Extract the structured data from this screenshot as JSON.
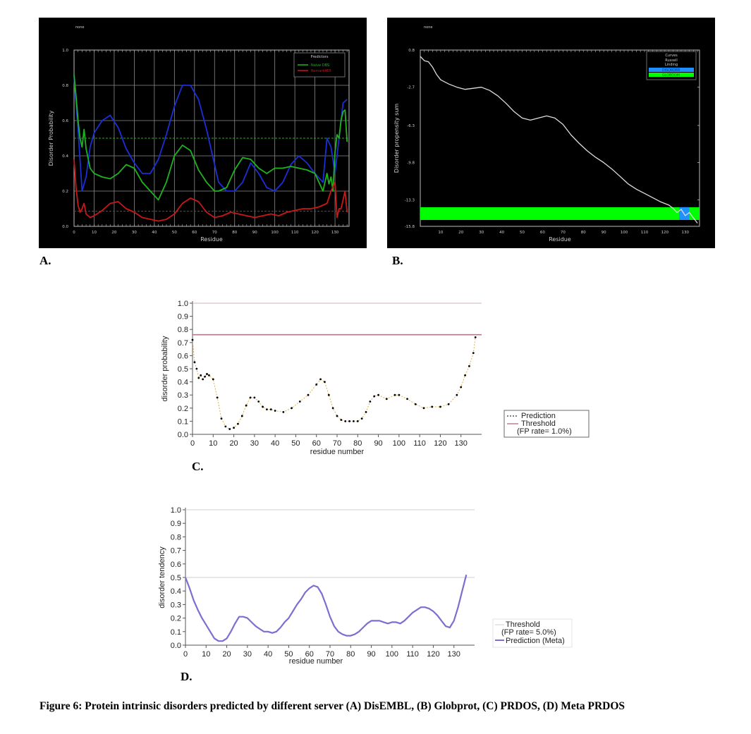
{
  "caption": "Figure 6: Protein intrinsic disorders predicted by different server (A) DisEMBL, (B) Globprot, (C) PRDOS, (D) Meta PRDOS",
  "panel_labels": {
    "a": "A.",
    "b": "B.",
    "c": "C.",
    "d": "D."
  },
  "colors": {
    "A_blue": "#1a2fd6",
    "A_green": "#1fb31f",
    "A_red": "#c81818",
    "B_line": "#dddddd",
    "B_green": "#00ff00",
    "B_blue": "#1e90ff",
    "C_threshold": "#b07a86",
    "C_pred": "#000000",
    "D_line": "#7b6fd0",
    "D_threshold": "#cfcfcf"
  },
  "chart_data": [
    {
      "id": "A",
      "type": "line",
      "top_label": "none",
      "title": "",
      "xlabel": "Residue",
      "ylabel": "Disorder Probability",
      "xlim": [
        0,
        137
      ],
      "ylim": [
        0,
        1
      ],
      "xticks": [
        0,
        10,
        20,
        30,
        40,
        50,
        60,
        70,
        80,
        90,
        100,
        110,
        120,
        130
      ],
      "yticks": [
        0.0,
        0.2,
        0.4,
        0.6,
        0.8,
        1.0
      ],
      "ytick_labels": [
        "0.0",
        "0.2",
        "0.4",
        "0.6",
        "0.8",
        "1.0"
      ],
      "grid": true,
      "legend": {
        "title": "Predictors",
        "position": "top-right"
      },
      "thresholds": [
        {
          "y": 0.5,
          "color": "#1fb31f"
        },
        {
          "y": 0.086,
          "color": "#c81818"
        }
      ],
      "series": [
        {
          "name": "",
          "color": "#1a2fd6",
          "x": [
            0,
            2,
            4,
            6,
            8,
            10,
            14,
            18,
            22,
            26,
            30,
            34,
            38,
            42,
            46,
            50,
            54,
            58,
            62,
            66,
            70,
            72,
            76,
            80,
            84,
            88,
            92,
            96,
            100,
            104,
            108,
            112,
            116,
            120,
            124,
            126,
            128,
            130,
            132,
            134,
            136
          ],
          "y": [
            0.85,
            0.55,
            0.2,
            0.28,
            0.45,
            0.53,
            0.6,
            0.63,
            0.56,
            0.44,
            0.36,
            0.3,
            0.3,
            0.38,
            0.52,
            0.68,
            0.8,
            0.8,
            0.72,
            0.55,
            0.35,
            0.25,
            0.2,
            0.2,
            0.25,
            0.36,
            0.3,
            0.22,
            0.2,
            0.25,
            0.35,
            0.4,
            0.36,
            0.3,
            0.25,
            0.5,
            0.45,
            0.3,
            0.5,
            0.7,
            0.72
          ]
        },
        {
          "name": "Naive DBS",
          "color": "#1fb31f",
          "x": [
            0,
            1,
            2,
            3,
            4,
            5,
            6,
            8,
            10,
            14,
            18,
            22,
            26,
            30,
            34,
            38,
            42,
            46,
            50,
            54,
            58,
            62,
            66,
            70,
            72,
            76,
            80,
            84,
            88,
            92,
            96,
            100,
            104,
            108,
            112,
            116,
            120,
            124,
            126,
            127,
            128,
            129,
            130,
            131,
            132,
            133,
            134,
            135,
            136
          ],
          "y": [
            0.86,
            0.74,
            0.6,
            0.5,
            0.45,
            0.55,
            0.44,
            0.33,
            0.3,
            0.28,
            0.27,
            0.3,
            0.35,
            0.33,
            0.25,
            0.2,
            0.15,
            0.25,
            0.4,
            0.46,
            0.43,
            0.32,
            0.25,
            0.2,
            0.2,
            0.22,
            0.32,
            0.39,
            0.38,
            0.33,
            0.3,
            0.33,
            0.33,
            0.34,
            0.33,
            0.32,
            0.3,
            0.2,
            0.3,
            0.24,
            0.28,
            0.2,
            0.42,
            0.52,
            0.5,
            0.6,
            0.65,
            0.66,
            0.48
          ]
        },
        {
          "name": "Remark465",
          "color": "#c81818",
          "x": [
            0,
            1,
            2,
            3,
            4,
            5,
            6,
            8,
            10,
            14,
            18,
            22,
            26,
            30,
            34,
            38,
            42,
            46,
            50,
            54,
            58,
            62,
            66,
            70,
            74,
            78,
            82,
            86,
            90,
            94,
            98,
            102,
            106,
            110,
            114,
            118,
            122,
            126,
            128,
            130,
            131,
            132,
            133,
            134,
            135,
            136
          ],
          "y": [
            0.38,
            0.22,
            0.12,
            0.08,
            0.1,
            0.13,
            0.07,
            0.05,
            0.06,
            0.09,
            0.13,
            0.14,
            0.1,
            0.08,
            0.05,
            0.04,
            0.03,
            0.04,
            0.07,
            0.13,
            0.16,
            0.14,
            0.08,
            0.05,
            0.06,
            0.08,
            0.07,
            0.06,
            0.05,
            0.06,
            0.07,
            0.06,
            0.08,
            0.09,
            0.1,
            0.1,
            0.11,
            0.13,
            0.2,
            0.25,
            0.05,
            0.1,
            0.1,
            0.15,
            0.2,
            0.08
          ]
        }
      ]
    },
    {
      "id": "B",
      "type": "line",
      "top_label": "none",
      "title": "",
      "xlabel": "Residue",
      "ylabel": "Disorder propensity sum",
      "xlim": [
        0,
        137
      ],
      "ylim": [
        -15.8,
        0.8
      ],
      "xticks": [
        10,
        20,
        30,
        40,
        50,
        60,
        70,
        80,
        90,
        100,
        110,
        120,
        130
      ],
      "yticks": [
        0.8,
        -2.7,
        -6.3,
        -9.8,
        -13.3,
        -15.8
      ],
      "ytick_labels": [
        "0.8",
        "-2.7",
        "-6.3",
        "-9.8",
        "-13.3",
        "-15.8"
      ],
      "grid": false,
      "legend": {
        "title": "Curves",
        "position": "top-right",
        "entries": [
          "Russell",
          "Linding",
          "DISORDER",
          "GLOBDOM"
        ]
      },
      "series": [
        {
          "name": "Russell Linding",
          "color": "#dddddd",
          "x": [
            0,
            2,
            4,
            6,
            8,
            10,
            14,
            18,
            22,
            26,
            30,
            34,
            38,
            42,
            46,
            50,
            54,
            58,
            62,
            66,
            70,
            74,
            78,
            82,
            86,
            90,
            94,
            98,
            102,
            106,
            110,
            114,
            118,
            122,
            124,
            126,
            128,
            130,
            132,
            134,
            136
          ],
          "y": [
            0.2,
            -0.2,
            -0.3,
            -0.8,
            -1.5,
            -2.0,
            -2.4,
            -2.7,
            -2.9,
            -2.8,
            -2.7,
            -3.0,
            -3.5,
            -4.2,
            -5.0,
            -5.6,
            -5.8,
            -5.6,
            -5.4,
            -5.6,
            -6.2,
            -7.2,
            -8.0,
            -8.7,
            -9.3,
            -9.8,
            -10.4,
            -11.1,
            -11.8,
            -12.3,
            -12.7,
            -13.1,
            -13.5,
            -13.8,
            -14.1,
            -14.5,
            -14.2,
            -14.8,
            -14.5,
            -15.0,
            -15.5
          ]
        }
      ],
      "regions": [
        {
          "name": "GLOBDOM",
          "color": "#00ff00",
          "x0": 0,
          "x1": 137
        },
        {
          "name": "DISORDER",
          "color": "#1e90ff",
          "x0": 127,
          "x1": 132
        }
      ]
    },
    {
      "id": "C",
      "type": "line",
      "title": "",
      "xlabel": "residue number",
      "ylabel": "disorder probability",
      "xlim": [
        0,
        140
      ],
      "ylim": [
        0,
        1
      ],
      "xticks": [
        0,
        10,
        20,
        30,
        40,
        50,
        60,
        70,
        80,
        90,
        100,
        110,
        120,
        130
      ],
      "yticks": [
        0.0,
        0.1,
        0.2,
        0.3,
        0.4,
        0.5,
        0.6,
        0.7,
        0.8,
        0.9,
        1.0
      ],
      "grid": false,
      "legend": {
        "position": "right",
        "entries": [
          "Prediction",
          "Threshold",
          "(FP rate= 1.0%)"
        ]
      },
      "thresholds": [
        {
          "y": 0.76
        },
        {
          "y": 1.0
        }
      ],
      "series": [
        {
          "name": "Prediction",
          "x": [
            0,
            1,
            2,
            3,
            4,
            5,
            6,
            7,
            8,
            10,
            12,
            14,
            16,
            18,
            20,
            22,
            24,
            26,
            28,
            30,
            32,
            34,
            36,
            38,
            40,
            44,
            48,
            52,
            56,
            60,
            62,
            64,
            66,
            68,
            70,
            72,
            74,
            76,
            78,
            80,
            82,
            84,
            86,
            88,
            90,
            94,
            98,
            100,
            104,
            108,
            112,
            116,
            120,
            124,
            128,
            130,
            132,
            134,
            136,
            137
          ],
          "y": [
            0.72,
            0.55,
            0.5,
            0.43,
            0.45,
            0.42,
            0.44,
            0.46,
            0.45,
            0.42,
            0.28,
            0.12,
            0.06,
            0.04,
            0.05,
            0.08,
            0.14,
            0.22,
            0.28,
            0.28,
            0.25,
            0.21,
            0.19,
            0.19,
            0.18,
            0.17,
            0.2,
            0.25,
            0.3,
            0.38,
            0.42,
            0.4,
            0.3,
            0.2,
            0.14,
            0.11,
            0.1,
            0.1,
            0.1,
            0.1,
            0.12,
            0.17,
            0.25,
            0.29,
            0.3,
            0.27,
            0.3,
            0.3,
            0.27,
            0.23,
            0.2,
            0.21,
            0.21,
            0.23,
            0.3,
            0.36,
            0.45,
            0.52,
            0.62,
            0.74
          ]
        }
      ]
    },
    {
      "id": "D",
      "type": "line",
      "title": "",
      "xlabel": "residue number",
      "ylabel": "disorder tendency",
      "xlim": [
        0,
        140
      ],
      "ylim": [
        0,
        1
      ],
      "xticks": [
        0,
        10,
        20,
        30,
        40,
        50,
        60,
        70,
        80,
        90,
        100,
        110,
        120,
        130
      ],
      "yticks": [
        0.0,
        0.1,
        0.2,
        0.3,
        0.4,
        0.5,
        0.6,
        0.7,
        0.8,
        0.9,
        1.0
      ],
      "grid": false,
      "legend": {
        "position": "right",
        "entries": [
          "Threshold",
          "(FP rate= 5.0%)",
          "Prediction (Meta)"
        ]
      },
      "thresholds": [
        {
          "y": 0.5
        },
        {
          "y": 1.0
        }
      ],
      "series": [
        {
          "name": "Prediction (Meta)",
          "x": [
            0,
            2,
            4,
            6,
            8,
            10,
            12,
            14,
            16,
            18,
            20,
            22,
            24,
            26,
            28,
            30,
            32,
            34,
            36,
            38,
            40,
            42,
            44,
            46,
            48,
            50,
            52,
            54,
            56,
            58,
            60,
            62,
            64,
            66,
            68,
            70,
            72,
            74,
            76,
            78,
            80,
            82,
            84,
            86,
            88,
            90,
            92,
            94,
            96,
            98,
            100,
            102,
            104,
            106,
            108,
            110,
            112,
            114,
            116,
            118,
            120,
            122,
            124,
            126,
            128,
            130,
            132,
            134,
            136
          ],
          "y": [
            0.5,
            0.42,
            0.33,
            0.26,
            0.2,
            0.15,
            0.1,
            0.05,
            0.03,
            0.03,
            0.05,
            0.1,
            0.16,
            0.21,
            0.21,
            0.2,
            0.17,
            0.14,
            0.12,
            0.1,
            0.1,
            0.09,
            0.1,
            0.13,
            0.17,
            0.2,
            0.25,
            0.3,
            0.34,
            0.39,
            0.42,
            0.44,
            0.43,
            0.38,
            0.3,
            0.21,
            0.14,
            0.1,
            0.08,
            0.07,
            0.07,
            0.08,
            0.1,
            0.13,
            0.16,
            0.18,
            0.18,
            0.18,
            0.17,
            0.16,
            0.17,
            0.17,
            0.16,
            0.18,
            0.21,
            0.24,
            0.26,
            0.28,
            0.28,
            0.27,
            0.25,
            0.22,
            0.18,
            0.14,
            0.13,
            0.18,
            0.28,
            0.4,
            0.52
          ]
        }
      ]
    }
  ]
}
